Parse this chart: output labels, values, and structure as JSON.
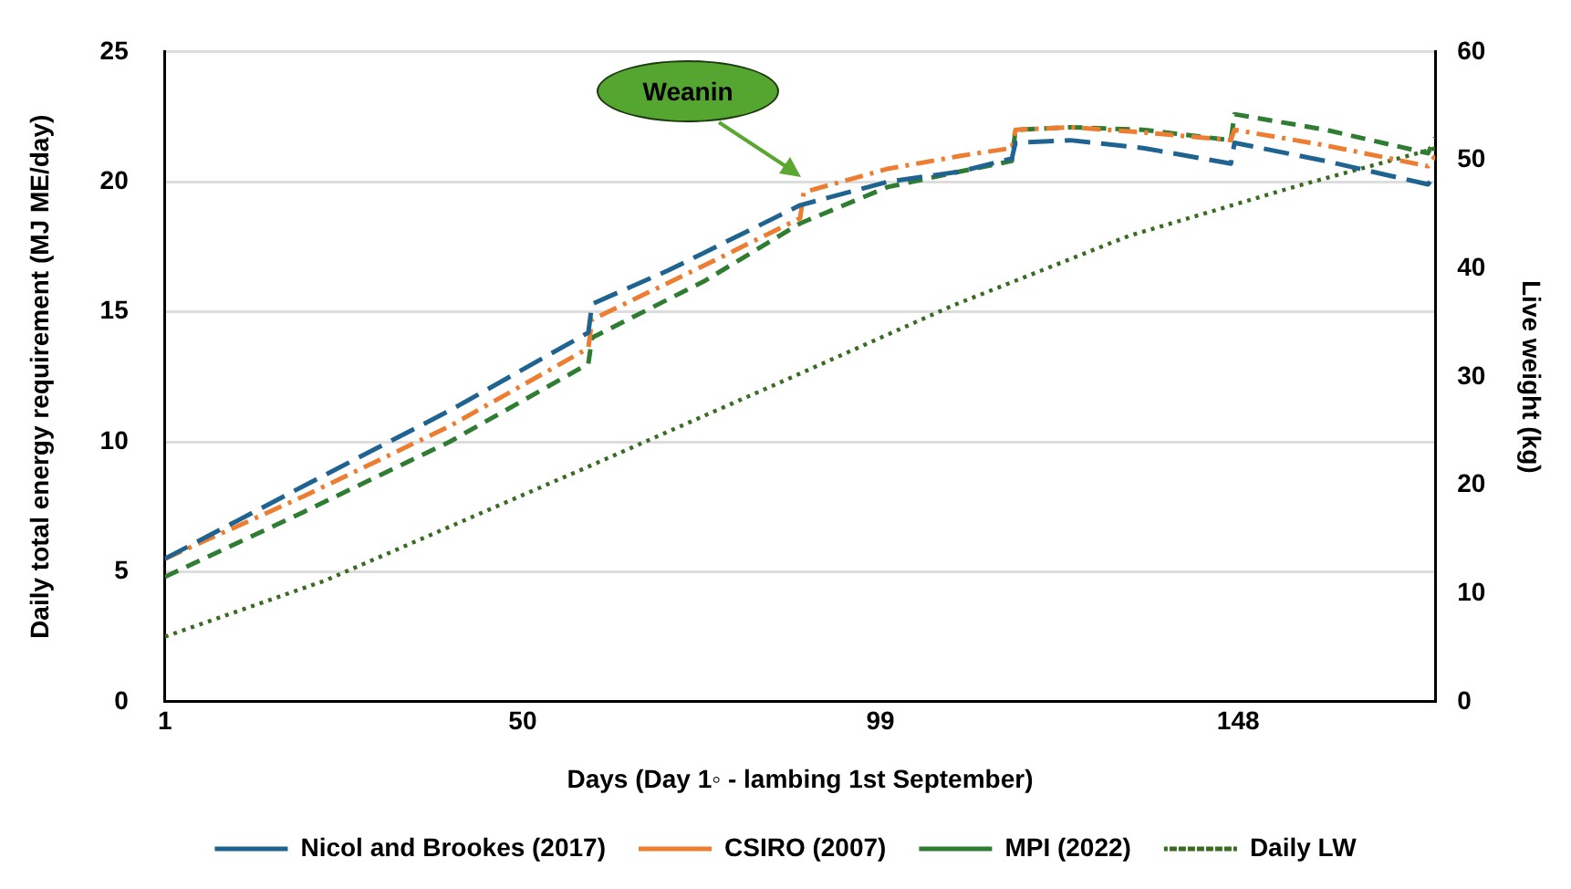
{
  "chart_data": {
    "type": "line",
    "xlabel": "Days (Day 1◦ - lambing 1st September)",
    "ylabel": "Daily total energy requirement (MJ ME/day)",
    "y2label": "Live weight (kg)",
    "xlim": [
      1,
      175
    ],
    "xticks": [
      1,
      50,
      99,
      148
    ],
    "ylim": [
      0,
      25
    ],
    "yticks": [
      0,
      5,
      10,
      15,
      20,
      25
    ],
    "y2lim": [
      0,
      60
    ],
    "y2ticks": [
      0,
      10,
      20,
      30,
      40,
      50,
      60
    ],
    "grid": "y",
    "legend": "bottom",
    "marker": "none",
    "annotations": [
      "Weanin"
    ],
    "series": [
      {
        "name": "Nicol and Brookes (2017)",
        "color": "#1f6391",
        "line_style": "dashed",
        "x": [
          1,
          20,
          40,
          59,
          59.5,
          70,
          88,
          100,
          110,
          117,
          117.5,
          125,
          135,
          147,
          147.5,
          160,
          174,
          175
        ],
        "values": [
          5.5,
          8.3,
          11.2,
          14.2,
          15.3,
          16.6,
          19.1,
          20.0,
          20.4,
          20.9,
          21.5,
          21.6,
          21.3,
          20.7,
          21.5,
          20.8,
          19.9,
          20.3
        ]
      },
      {
        "name": "CSIRO (2007)",
        "color": "#ed7d31",
        "line_style": "dashed",
        "x": [
          1,
          20,
          40,
          59,
          59.5,
          75,
          88,
          88.5,
          100,
          110,
          117,
          117.5,
          125,
          135,
          147,
          147.5,
          160,
          174,
          175
        ],
        "values": [
          5.5,
          7.9,
          10.6,
          13.6,
          14.7,
          16.8,
          18.6,
          19.6,
          20.5,
          21.0,
          21.3,
          22.0,
          22.1,
          21.9,
          21.6,
          22.0,
          21.4,
          20.6,
          21.0
        ]
      },
      {
        "name": "MPI (2022)",
        "color": "#2e7d32",
        "line_style": "dashed",
        "x": [
          1,
          20,
          40,
          59,
          59.5,
          75,
          88,
          100,
          110,
          117,
          117.5,
          125,
          135,
          147,
          147.5,
          160,
          174,
          175
        ],
        "values": [
          4.8,
          7.3,
          10.0,
          13.0,
          14.0,
          16.2,
          18.4,
          19.8,
          20.4,
          20.8,
          22.0,
          22.1,
          22.0,
          21.6,
          22.6,
          22.0,
          21.1,
          21.7
        ]
      },
      {
        "name": "Daily LW",
        "color": "#3a6b22",
        "line_style": "dotted",
        "axis": "y2",
        "x": [
          1,
          23,
          59,
          85,
          109,
          133,
          156,
          174,
          175
        ],
        "values": [
          6.0,
          11.2,
          21.7,
          29.4,
          36.6,
          43.0,
          47.6,
          50.9,
          51.1
        ]
      }
    ]
  }
}
